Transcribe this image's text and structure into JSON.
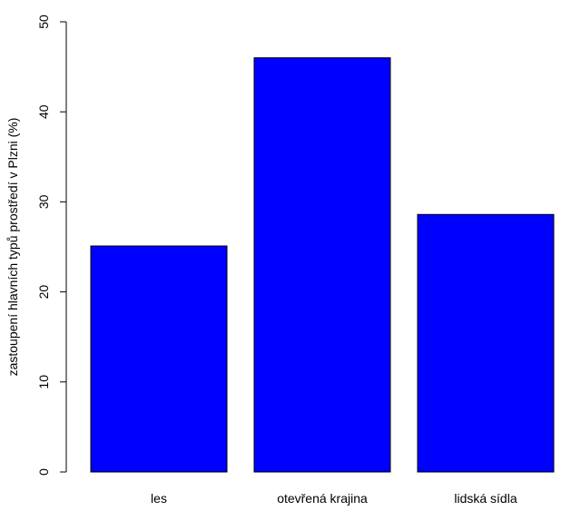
{
  "chart_data": {
    "type": "bar",
    "title": "",
    "xlabel": "",
    "ylabel": "zastoupení hlavních typů prostředí v Plzni (%)",
    "categories": [
      "les",
      "otevřená krajina",
      "lidská sídla"
    ],
    "values": [
      25.1,
      46.0,
      28.6
    ],
    "ylim": [
      0,
      50
    ],
    "yticks": [
      0,
      10,
      20,
      30,
      40,
      50
    ],
    "bar_color": "#0000FF",
    "bar_border_color": "#000000",
    "grid": false,
    "legend": "none"
  }
}
